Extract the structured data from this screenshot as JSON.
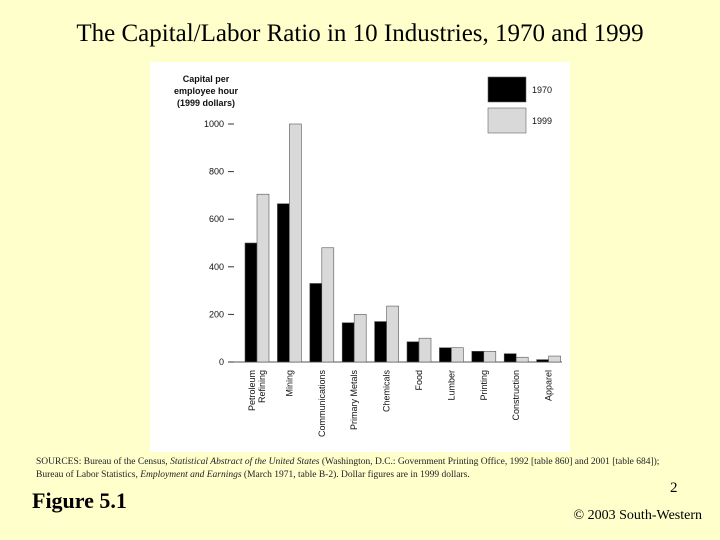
{
  "slide": {
    "title": "The Capital/Labor Ratio in 10 Industries, 1970 and 1999",
    "figure_label": "Figure 5.1",
    "page_number": "2",
    "copyright": "© 2003 South-Western",
    "sources": {
      "prefix": "SOURCES: Bureau of the Census, ",
      "source1": "Statistical Abstract of the United States",
      "middle": " (Washington, D.C.: Government Printing Office, 1992 [table 860] and 2001 [table 684]); Bureau of Labor Statistics, ",
      "source2": "Employment and Earnings",
      "suffix": " (March 1971, table B-2). Dollar figures are in 1999 dollars."
    }
  },
  "chart_data": {
    "type": "bar",
    "title": "",
    "ylabel": "Capital per employee hour (1999 dollars)",
    "ylabel_lines": [
      "Capital per",
      "employee hour",
      "(1999 dollars)"
    ],
    "xlabel": "",
    "ylim": [
      0,
      1000
    ],
    "yticks": [
      0,
      200,
      400,
      600,
      800,
      1000
    ],
    "grid": false,
    "legend_position": "top-right",
    "categories": [
      "Petroleum Refining",
      "Mining",
      "Communications",
      "Primary Metals",
      "Chemicals",
      "Food",
      "Lumber",
      "Printing",
      "Construction",
      "Apparel"
    ],
    "category_label_lines": [
      [
        "Petroleum",
        "Refining"
      ],
      [
        "Mining"
      ],
      [
        "Communications"
      ],
      [
        "Primary Metals"
      ],
      [
        "Chemicals"
      ],
      [
        "Food"
      ],
      [
        "Lumber"
      ],
      [
        "Printing"
      ],
      [
        "Construction"
      ],
      [
        "Apparel"
      ]
    ],
    "series": [
      {
        "name": "1970",
        "color": "#000000",
        "values": [
          500,
          665,
          330,
          165,
          170,
          85,
          60,
          45,
          35,
          10
        ]
      },
      {
        "name": "1999",
        "color": "#d9d9d9",
        "values": [
          705,
          1000,
          480,
          200,
          235,
          100,
          60,
          45,
          20,
          25
        ]
      }
    ]
  }
}
